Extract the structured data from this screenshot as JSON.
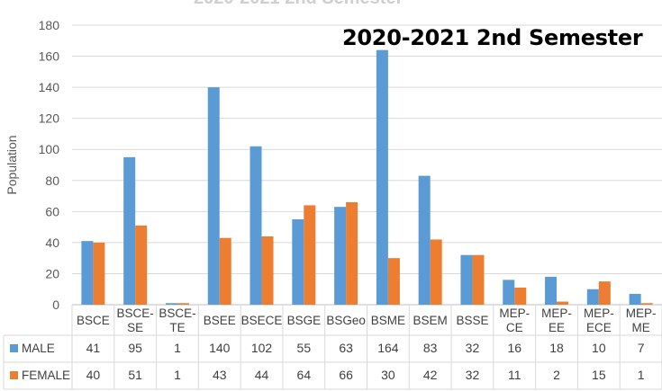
{
  "chart_data": {
    "type": "bar",
    "title": "2020-2021 2nd Semester",
    "ghost_title": "2020-2021 2nd Semester",
    "ylabel": "Population",
    "ylim": [
      0,
      180
    ],
    "yticks": [
      0,
      20,
      40,
      60,
      80,
      100,
      120,
      140,
      160,
      180
    ],
    "grid": true,
    "categories": [
      [
        "BSCE"
      ],
      [
        "BSCE-",
        "SE"
      ],
      [
        "BSCE-",
        "TE"
      ],
      [
        "BSEE"
      ],
      [
        "BSECE"
      ],
      [
        "BSGE"
      ],
      [
        "BSGeo"
      ],
      [
        "BSME"
      ],
      [
        "BSEM"
      ],
      [
        "BSSE"
      ],
      [
        "MEP-",
        "CE"
      ],
      [
        "MEP-",
        "EE"
      ],
      [
        "MEP-",
        "ECE"
      ],
      [
        "MEP-",
        "ME"
      ]
    ],
    "series": [
      {
        "name": "MALE",
        "color": "#5b9bd5",
        "values": [
          41,
          95,
          1,
          140,
          102,
          55,
          63,
          164,
          83,
          32,
          16,
          18,
          10,
          7
        ]
      },
      {
        "name": "FEMALE",
        "color": "#ed7d31",
        "values": [
          40,
          51,
          1,
          43,
          44,
          64,
          66,
          30,
          42,
          32,
          11,
          2,
          15,
          1
        ]
      }
    ]
  }
}
